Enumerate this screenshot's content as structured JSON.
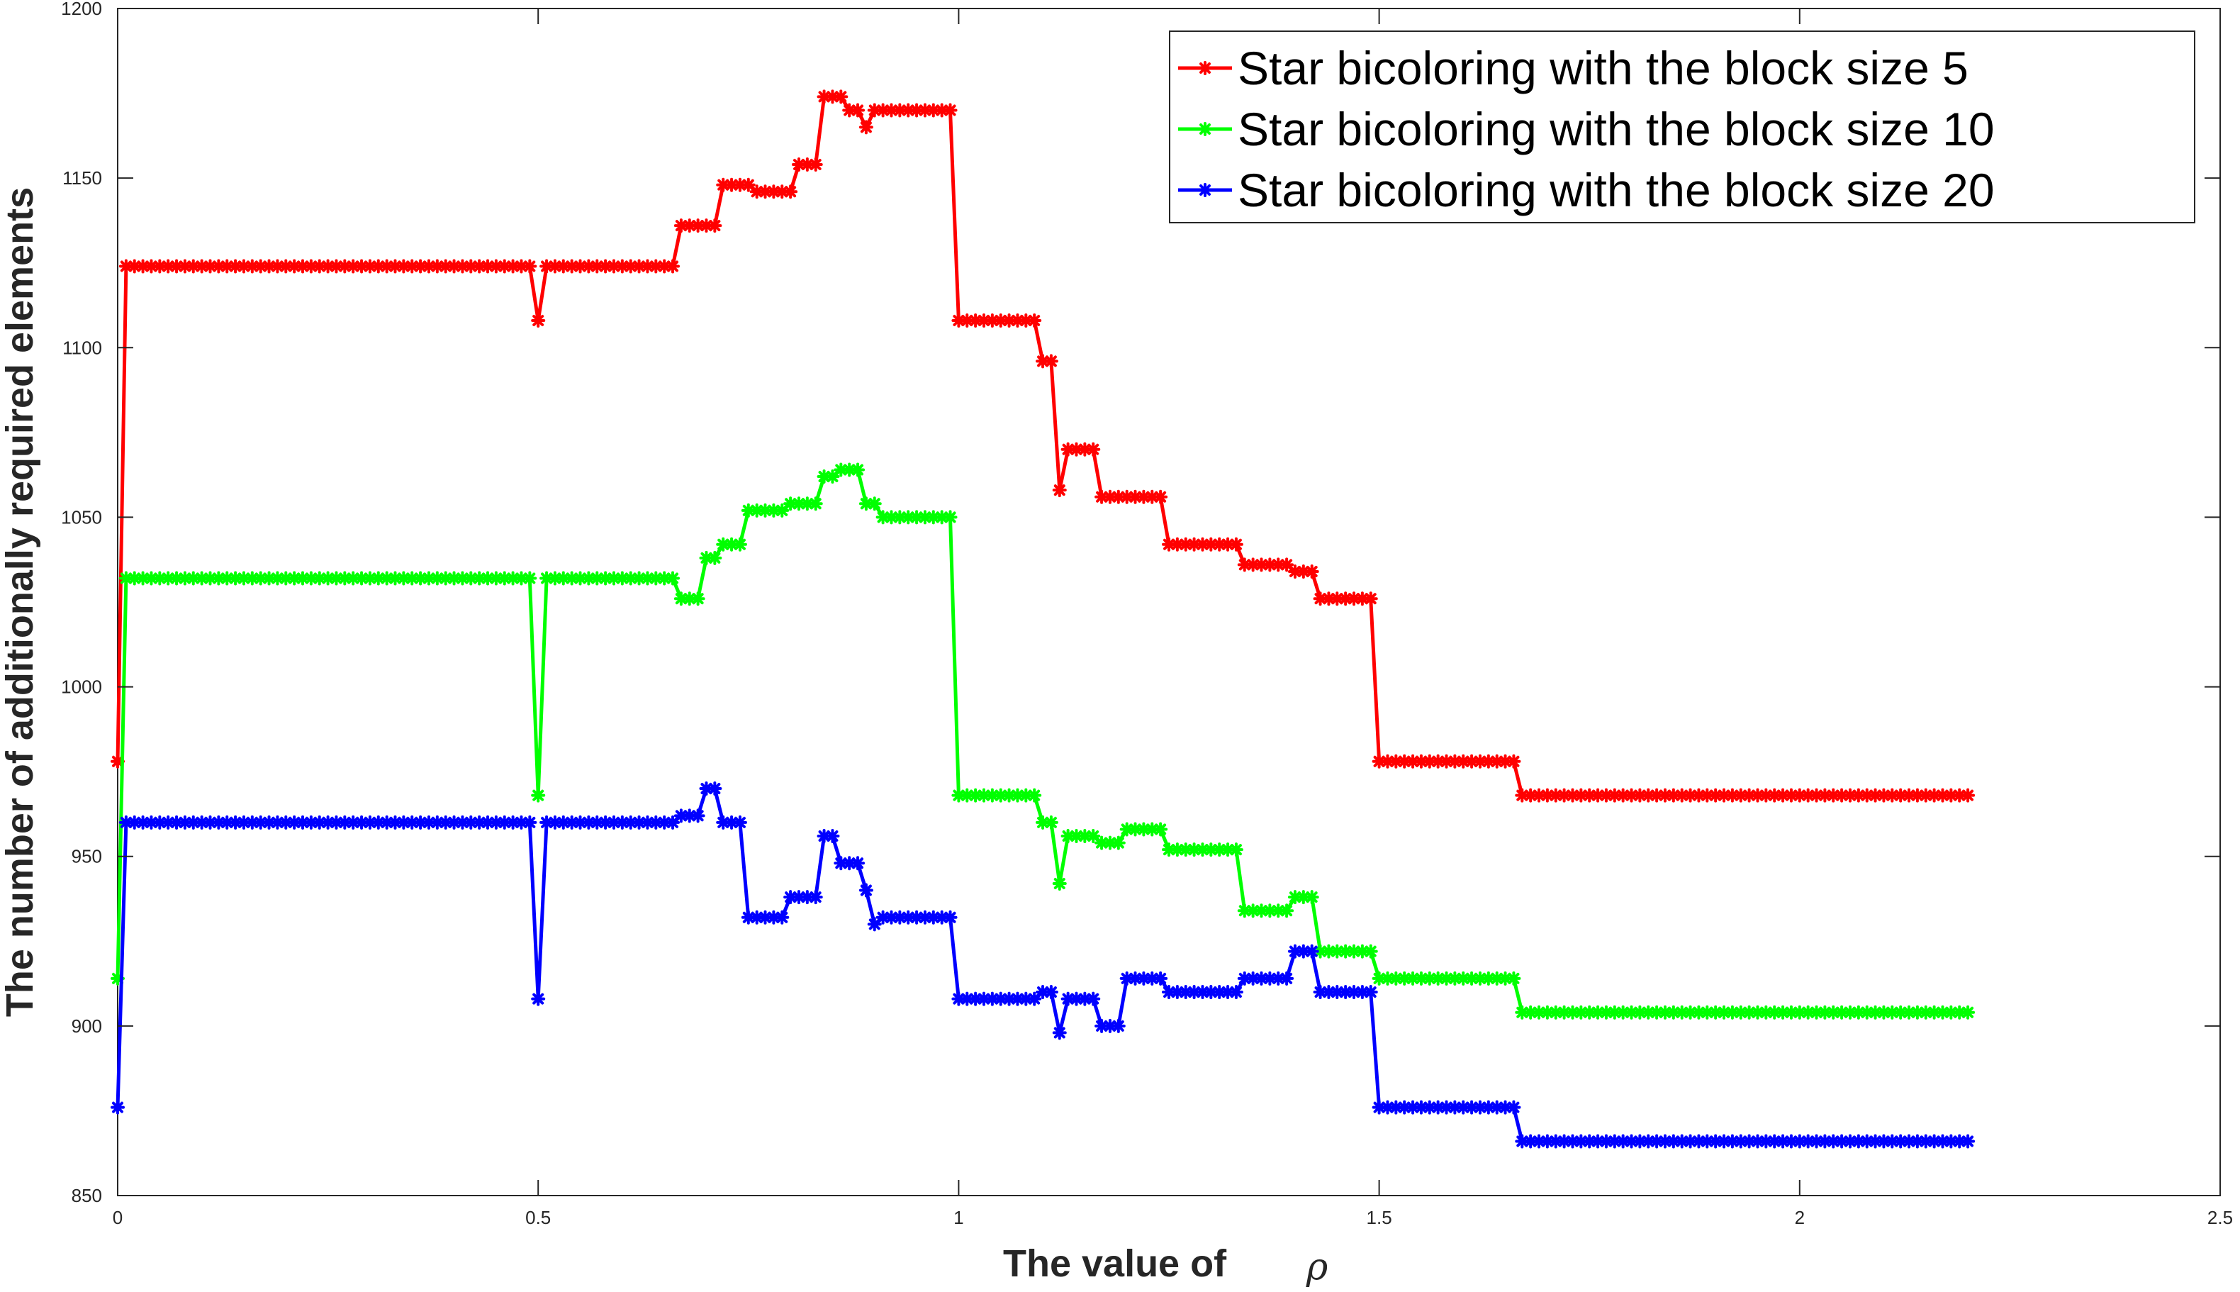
{
  "chart_data": {
    "type": "line",
    "title": "",
    "xlabel": "The value of",
    "xlabel_symbol": "ρ",
    "ylabel": "The number of additionally required elements",
    "xlim": [
      0,
      2.5
    ],
    "ylim": [
      850,
      1200
    ],
    "xticks": [
      0,
      0.5,
      1,
      1.5,
      2,
      2.5
    ],
    "xtick_labels": [
      "0",
      "0.5",
      "1",
      "1.5",
      "2",
      "2.5"
    ],
    "yticks": [
      850,
      900,
      950,
      1000,
      1050,
      1100,
      1150,
      1200
    ],
    "ytick_labels": [
      "850",
      "900",
      "950",
      "1000",
      "1050",
      "1100",
      "1150",
      "1200"
    ],
    "grid": false,
    "legend_position": "top-right",
    "marker": "asterisk",
    "series": [
      {
        "name": "Star bicoloring with the block size 5",
        "color": "#ff0000",
        "points": [
          [
            0.0,
            978
          ],
          [
            0.01,
            1124
          ],
          [
            0.49,
            1124
          ],
          [
            0.5,
            1108
          ],
          [
            0.51,
            1124
          ],
          [
            0.66,
            1124
          ],
          [
            0.67,
            1136
          ],
          [
            0.71,
            1136
          ],
          [
            0.72,
            1148
          ],
          [
            0.75,
            1148
          ],
          [
            0.76,
            1146
          ],
          [
            0.8,
            1146
          ],
          [
            0.81,
            1154
          ],
          [
            0.83,
            1154
          ],
          [
            0.84,
            1174
          ],
          [
            0.86,
            1174
          ],
          [
            0.87,
            1170
          ],
          [
            0.88,
            1170
          ],
          [
            0.89,
            1165
          ],
          [
            0.9,
            1170
          ],
          [
            0.99,
            1170
          ],
          [
            1.0,
            1108
          ],
          [
            1.09,
            1108
          ],
          [
            1.1,
            1096
          ],
          [
            1.11,
            1096
          ],
          [
            1.12,
            1058
          ],
          [
            1.13,
            1070
          ],
          [
            1.16,
            1070
          ],
          [
            1.17,
            1056
          ],
          [
            1.24,
            1056
          ],
          [
            1.25,
            1042
          ],
          [
            1.33,
            1042
          ],
          [
            1.34,
            1036
          ],
          [
            1.39,
            1036
          ],
          [
            1.4,
            1034
          ],
          [
            1.42,
            1034
          ],
          [
            1.43,
            1026
          ],
          [
            1.49,
            1026
          ],
          [
            1.5,
            978
          ],
          [
            1.66,
            978
          ],
          [
            1.67,
            968
          ],
          [
            2.2,
            968
          ]
        ]
      },
      {
        "name": "Star bicoloring with the block size 10",
        "color": "#00ff00",
        "points": [
          [
            0.0,
            914
          ],
          [
            0.01,
            1032
          ],
          [
            0.49,
            1032
          ],
          [
            0.5,
            968
          ],
          [
            0.51,
            1032
          ],
          [
            0.66,
            1032
          ],
          [
            0.67,
            1026
          ],
          [
            0.69,
            1026
          ],
          [
            0.7,
            1038
          ],
          [
            0.71,
            1038
          ],
          [
            0.72,
            1042
          ],
          [
            0.74,
            1042
          ],
          [
            0.75,
            1052
          ],
          [
            0.79,
            1052
          ],
          [
            0.8,
            1054
          ],
          [
            0.83,
            1054
          ],
          [
            0.84,
            1062
          ],
          [
            0.85,
            1062
          ],
          [
            0.86,
            1064
          ],
          [
            0.88,
            1064
          ],
          [
            0.89,
            1054
          ],
          [
            0.9,
            1054
          ],
          [
            0.91,
            1050
          ],
          [
            0.99,
            1050
          ],
          [
            1.0,
            968
          ],
          [
            1.09,
            968
          ],
          [
            1.1,
            960
          ],
          [
            1.11,
            960
          ],
          [
            1.12,
            942
          ],
          [
            1.13,
            956
          ],
          [
            1.16,
            956
          ],
          [
            1.17,
            954
          ],
          [
            1.19,
            954
          ],
          [
            1.2,
            958
          ],
          [
            1.24,
            958
          ],
          [
            1.25,
            952
          ],
          [
            1.33,
            952
          ],
          [
            1.34,
            934
          ],
          [
            1.39,
            934
          ],
          [
            1.4,
            938
          ],
          [
            1.42,
            938
          ],
          [
            1.43,
            922
          ],
          [
            1.49,
            922
          ],
          [
            1.5,
            914
          ],
          [
            1.66,
            914
          ],
          [
            1.67,
            904
          ],
          [
            2.2,
            904
          ]
        ]
      },
      {
        "name": "Star bicoloring with the block size 20",
        "color": "#0000ff",
        "points": [
          [
            0.0,
            876
          ],
          [
            0.01,
            960
          ],
          [
            0.49,
            960
          ],
          [
            0.5,
            908
          ],
          [
            0.51,
            960
          ],
          [
            0.66,
            960
          ],
          [
            0.67,
            962
          ],
          [
            0.69,
            962
          ],
          [
            0.7,
            970
          ],
          [
            0.71,
            970
          ],
          [
            0.72,
            960
          ],
          [
            0.74,
            960
          ],
          [
            0.75,
            932
          ],
          [
            0.79,
            932
          ],
          [
            0.8,
            938
          ],
          [
            0.83,
            938
          ],
          [
            0.84,
            956
          ],
          [
            0.85,
            956
          ],
          [
            0.86,
            948
          ],
          [
            0.88,
            948
          ],
          [
            0.89,
            940
          ],
          [
            0.9,
            930
          ],
          [
            0.91,
            932
          ],
          [
            0.99,
            932
          ],
          [
            1.0,
            908
          ],
          [
            1.09,
            908
          ],
          [
            1.1,
            910
          ],
          [
            1.11,
            910
          ],
          [
            1.12,
            898
          ],
          [
            1.13,
            908
          ],
          [
            1.16,
            908
          ],
          [
            1.17,
            900
          ],
          [
            1.19,
            900
          ],
          [
            1.2,
            914
          ],
          [
            1.24,
            914
          ],
          [
            1.25,
            910
          ],
          [
            1.33,
            910
          ],
          [
            1.34,
            914
          ],
          [
            1.39,
            914
          ],
          [
            1.4,
            922
          ],
          [
            1.42,
            922
          ],
          [
            1.43,
            910
          ],
          [
            1.49,
            910
          ],
          [
            1.5,
            876
          ],
          [
            1.66,
            876
          ],
          [
            1.67,
            866
          ],
          [
            2.2,
            866
          ]
        ]
      }
    ]
  }
}
